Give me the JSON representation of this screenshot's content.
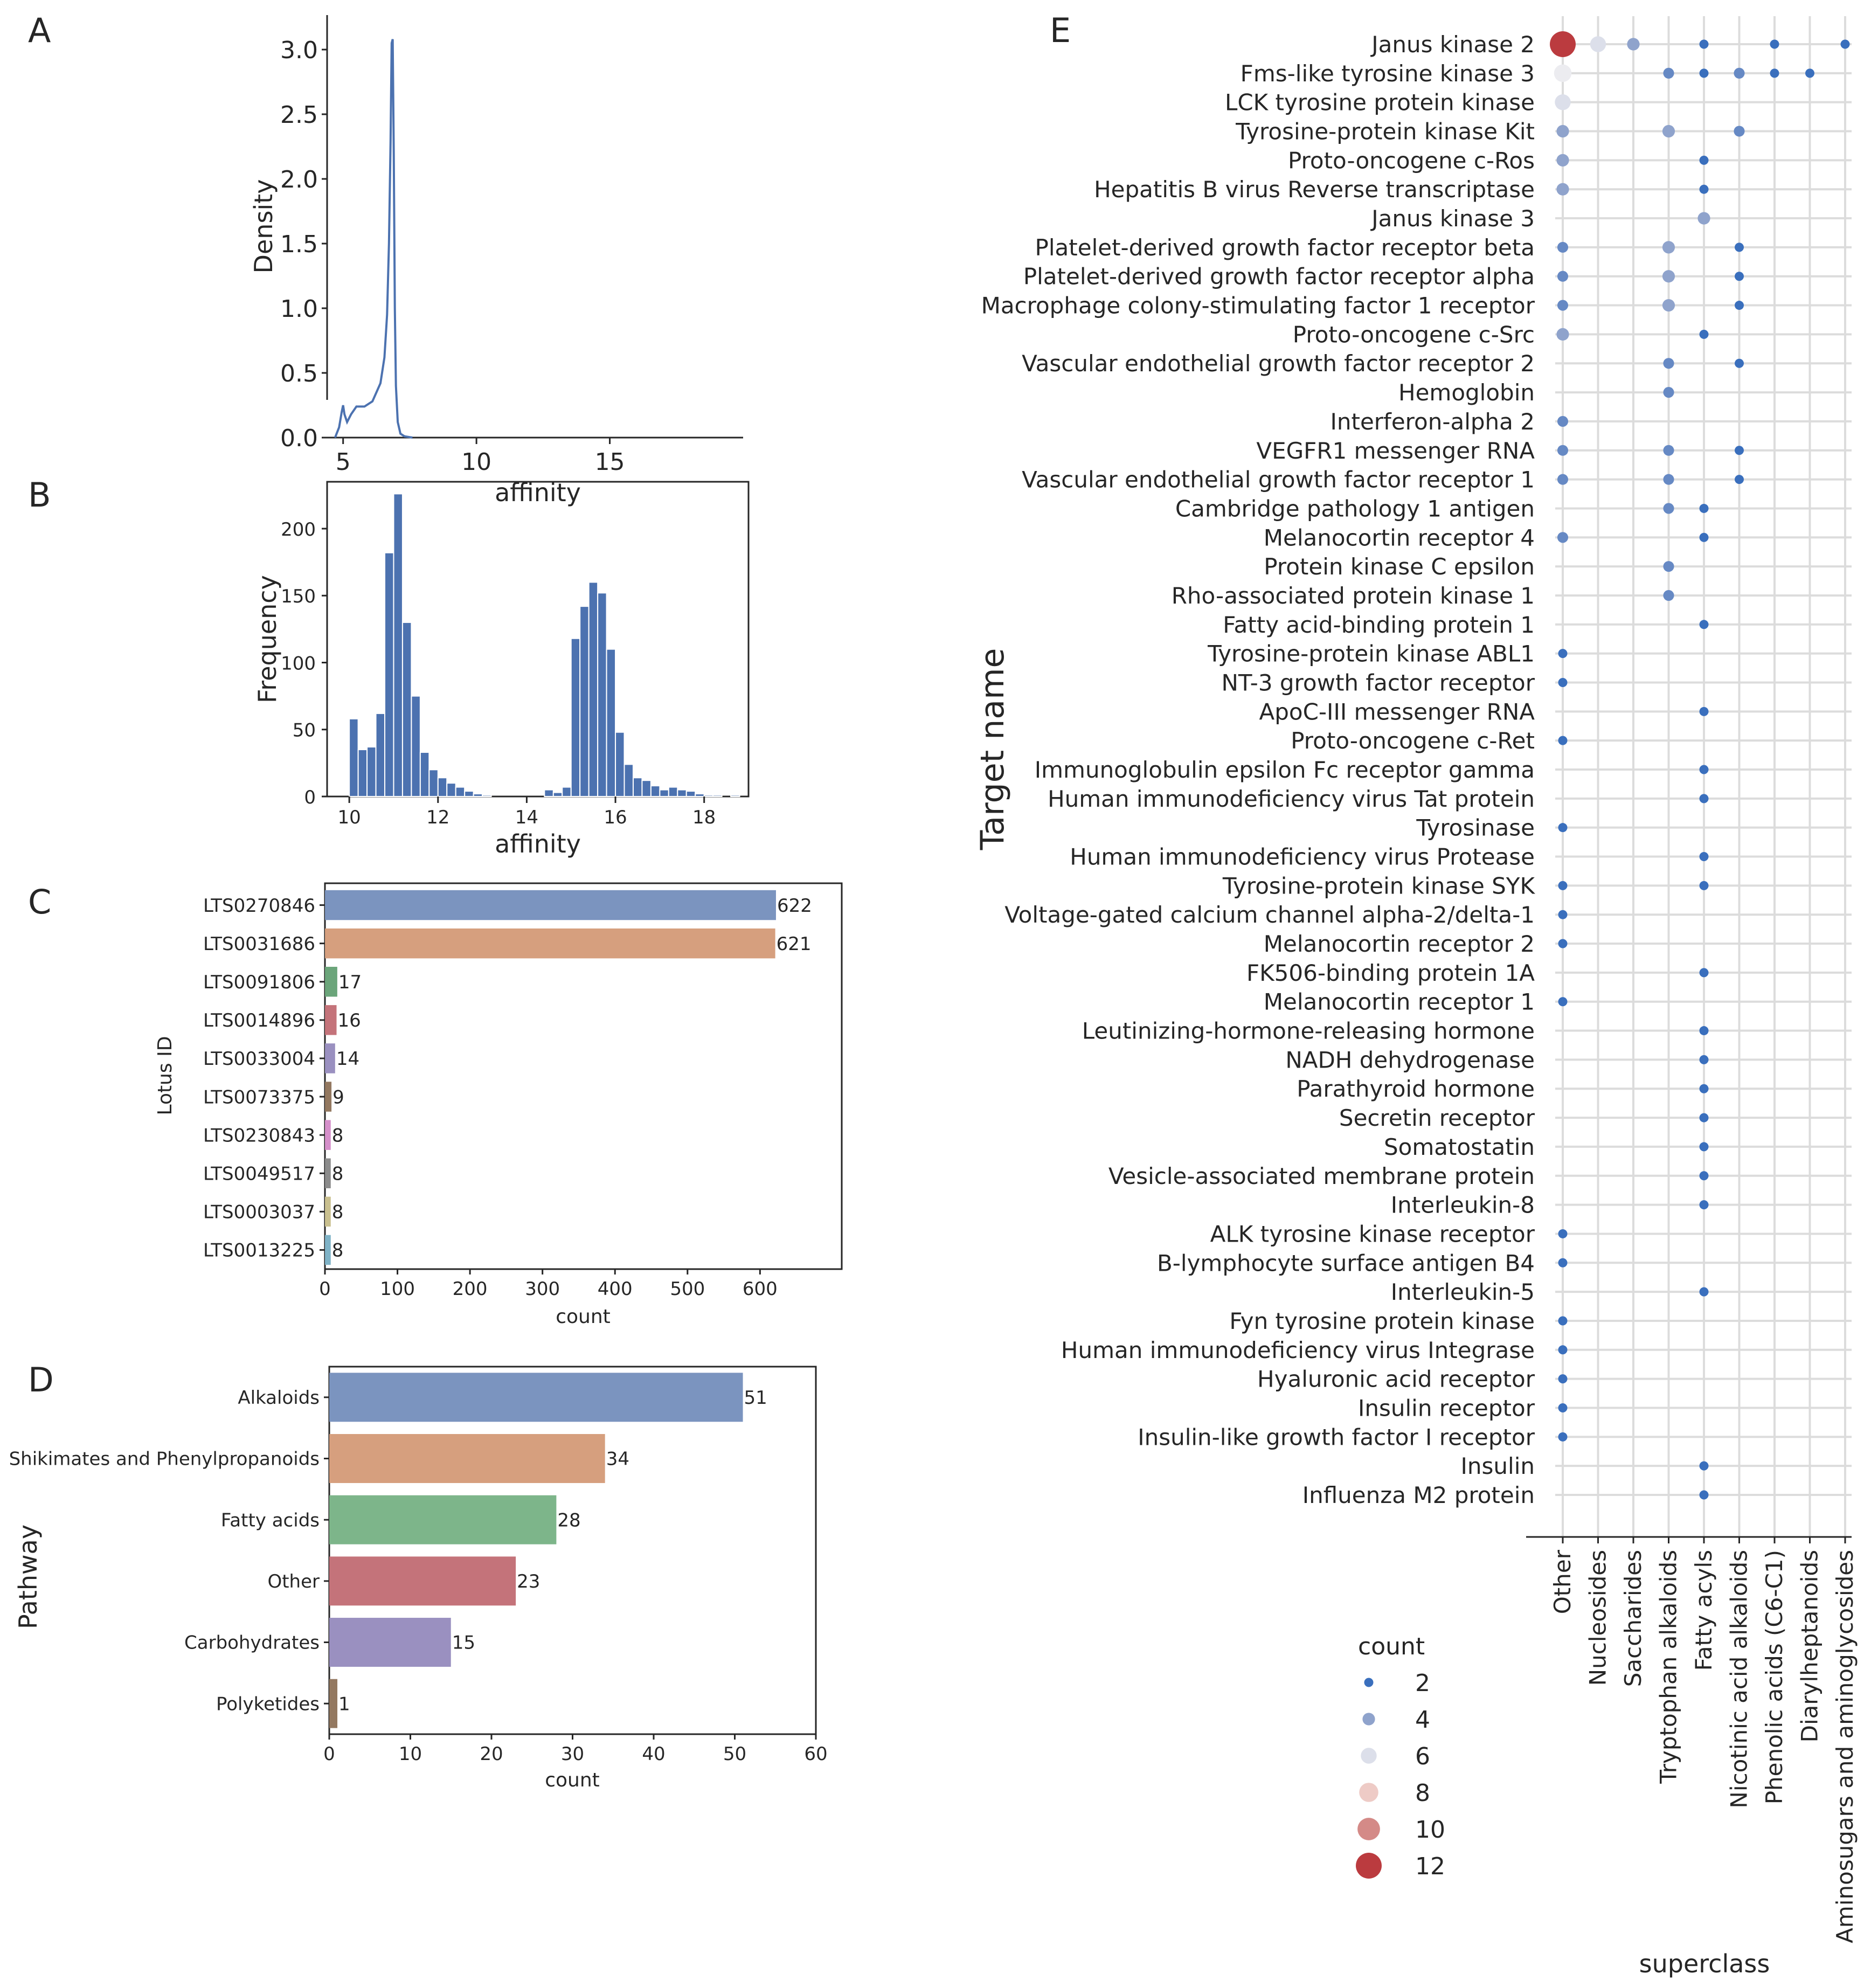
{
  "panels": {
    "A": "A",
    "B": "B",
    "C": "C",
    "D": "D",
    "E": "E"
  },
  "chart_data": [
    {
      "panel": "A",
      "type": "line",
      "title": "",
      "xlabel": "affinity",
      "ylabel": "Density",
      "xlim": [
        4.4,
        20
      ],
      "ylim": [
        0,
        3.25
      ],
      "xticks": [
        5,
        10,
        15
      ],
      "yticks": [
        0.0,
        0.5,
        1.0,
        1.5,
        2.0,
        2.5,
        3.0
      ],
      "color": "#4c72b0",
      "x": [
        4.7,
        4.85,
        4.95,
        5.0,
        5.05,
        5.15,
        5.3,
        5.5,
        5.8,
        6.1,
        6.4,
        6.55,
        6.65,
        6.72,
        6.78,
        6.82,
        6.86,
        6.9,
        6.94,
        6.98,
        7.05,
        7.15,
        7.3,
        7.6
      ],
      "y": [
        0.0,
        0.08,
        0.2,
        0.25,
        0.18,
        0.12,
        0.18,
        0.24,
        0.24,
        0.28,
        0.42,
        0.62,
        0.95,
        1.5,
        2.3,
        3.05,
        3.08,
        2.2,
        1.0,
        0.4,
        0.12,
        0.03,
        0.01,
        0.0
      ]
    },
    {
      "panel": "B",
      "type": "bar",
      "title": "",
      "xlabel": "affinity",
      "ylabel": "Frequency",
      "xlim": [
        9.5,
        19.0
      ],
      "ylim": [
        0,
        235
      ],
      "xticks": [
        10,
        12,
        14,
        16,
        18
      ],
      "yticks": [
        0,
        50,
        100,
        150,
        200
      ],
      "color": "#4c72b0",
      "bin_width": 0.2,
      "bin_starts": [
        10.0,
        10.2,
        10.4,
        10.6,
        10.8,
        11.0,
        11.2,
        11.4,
        11.6,
        11.8,
        12.0,
        12.2,
        12.4,
        12.6,
        12.8,
        13.0,
        13.2,
        13.4,
        13.6,
        13.8,
        14.0,
        14.2,
        14.4,
        14.6,
        14.8,
        15.0,
        15.2,
        15.4,
        15.6,
        15.8,
        16.0,
        16.2,
        16.4,
        16.6,
        16.8,
        17.0,
        17.2,
        17.4,
        17.6,
        17.8,
        18.0,
        18.2,
        18.4,
        18.6
      ],
      "values": [
        58,
        35,
        37,
        62,
        182,
        226,
        130,
        75,
        33,
        20,
        14,
        10,
        7,
        4,
        2,
        1,
        0,
        0,
        0,
        0,
        0,
        0,
        5,
        3,
        7,
        118,
        142,
        160,
        152,
        110,
        48,
        24,
        14,
        12,
        8,
        5,
        7,
        5,
        4,
        2,
        1,
        1,
        0,
        1
      ]
    },
    {
      "panel": "C",
      "type": "bar",
      "orientation": "horizontal",
      "title": "",
      "xlabel": "count",
      "ylabel": "Lotus ID",
      "xlim": [
        0,
        680
      ],
      "xticks": [
        0,
        100,
        200,
        300,
        400,
        500,
        600
      ],
      "categories": [
        "LTS0270846",
        "LTS0031686",
        "LTS0091806",
        "LTS0014896",
        "LTS0033004",
        "LTS0073375",
        "LTS0230843",
        "LTS0049517",
        "LTS0003037",
        "LTS0013225"
      ],
      "values": [
        622,
        621,
        17,
        16,
        14,
        9,
        8,
        8,
        8,
        8
      ],
      "colors": [
        "#7b94bf",
        "#d69f7e",
        "#6ba57a",
        "#c4737a",
        "#9a90c0",
        "#937860",
        "#d58fca",
        "#8c8c8c",
        "#c9c08f",
        "#7fb3c7"
      ]
    },
    {
      "panel": "D",
      "type": "bar",
      "orientation": "horizontal",
      "title": "",
      "xlabel": "count",
      "ylabel": "Pathway",
      "xlim": [
        0,
        60
      ],
      "xticks": [
        0,
        10,
        20,
        30,
        40,
        50,
        60
      ],
      "categories": [
        "Alkaloids",
        "Shikimates and Phenylpropanoids",
        "Fatty acids",
        "Other",
        "Carbohydrates",
        "Polyketides"
      ],
      "values": [
        51,
        34,
        28,
        23,
        15,
        1
      ],
      "colors": [
        "#7b94bf",
        "#d69f7e",
        "#7db58a",
        "#c4737a",
        "#9a90c0",
        "#937860"
      ]
    },
    {
      "panel": "E",
      "type": "scatter",
      "title": "",
      "xlabel": "superclass",
      "ylabel": "Target name",
      "x_categories": [
        "Other",
        "Nucleosides",
        "Saccharides",
        "Tryptophan alkaloids",
        "Fatty acyls",
        "Nicotinic acid alkaloids",
        "Phenolic acids (C6-C1)",
        "Diarylheptanoids",
        "Aminosugars and aminoglycosides"
      ],
      "y_categories": [
        "Janus kinase 2",
        "Fms-like tyrosine kinase 3",
        "LCK tyrosine protein kinase",
        "Tyrosine-protein kinase Kit",
        "Proto-oncogene c-Ros",
        "Hepatitis B virus Reverse transcriptase",
        "Janus kinase 3",
        "Platelet-derived growth factor receptor beta",
        "Platelet-derived growth factor receptor alpha",
        "Macrophage colony-stimulating factor 1 receptor",
        "Proto-oncogene c-Src",
        "Vascular endothelial growth factor receptor 2",
        "Hemoglobin",
        "Interferon-alpha 2",
        "VEGFR1 messenger RNA",
        "Vascular endothelial growth factor receptor 1",
        "Cambridge pathology 1 antigen",
        "Melanocortin receptor 4",
        "Protein kinase C epsilon",
        "Rho-associated protein kinase 1",
        "Fatty acid-binding protein 1",
        "Tyrosine-protein kinase ABL1",
        "NT-3 growth factor receptor",
        "ApoC-III messenger RNA",
        "Proto-oncogene c-Ret",
        "Immunoglobulin epsilon Fc receptor gamma",
        "Human immunodeficiency virus Tat protein",
        "Tyrosinase",
        "Human immunodeficiency virus Protease",
        "Tyrosine-protein kinase SYK",
        "Voltage-gated calcium channel alpha-2/delta-1",
        "Melanocortin receptor 2",
        "FK506-binding protein 1A",
        "Melanocortin receptor 1",
        "Leutinizing-hormone-releasing hormone",
        "NADH dehydrogenase",
        "Parathyroid hormone",
        "Secretin receptor",
        "Somatostatin",
        "Vesicle-associated membrane protein",
        "Interleukin-8",
        "ALK tyrosine kinase receptor",
        "B-lymphocyte surface antigen B4",
        "Interleukin-5",
        "Fyn tyrosine protein kinase",
        "Human immunodeficiency virus Integrase",
        "Hyaluronic acid receptor",
        "Insulin receptor",
        "Insulin-like growth factor I receptor",
        "Insulin",
        "Influenza M2 protein"
      ],
      "points": [
        {
          "target": "Janus kinase 2",
          "superclass": "Other",
          "count": 12
        },
        {
          "target": "Janus kinase 2",
          "superclass": "Nucleosides",
          "count": 6
        },
        {
          "target": "Janus kinase 2",
          "superclass": "Saccharides",
          "count": 4
        },
        {
          "target": "Janus kinase 2",
          "superclass": "Fatty acyls",
          "count": 2
        },
        {
          "target": "Janus kinase 2",
          "superclass": "Phenolic acids (C6-C1)",
          "count": 2
        },
        {
          "target": "Janus kinase 2",
          "superclass": "Aminosugars and aminoglycosides",
          "count": 2
        },
        {
          "target": "Fms-like tyrosine kinase 3",
          "superclass": "Other",
          "count": 7
        },
        {
          "target": "Fms-like tyrosine kinase 3",
          "superclass": "Tryptophan alkaloids",
          "count": 3
        },
        {
          "target": "Fms-like tyrosine kinase 3",
          "superclass": "Fatty acyls",
          "count": 2
        },
        {
          "target": "Fms-like tyrosine kinase 3",
          "superclass": "Nicotinic acid alkaloids",
          "count": 3
        },
        {
          "target": "Fms-like tyrosine kinase 3",
          "superclass": "Phenolic acids (C6-C1)",
          "count": 2
        },
        {
          "target": "Fms-like tyrosine kinase 3",
          "superclass": "Diarylheptanoids",
          "count": 2
        },
        {
          "target": "LCK tyrosine protein kinase",
          "superclass": "Other",
          "count": 6
        },
        {
          "target": "Tyrosine-protein kinase Kit",
          "superclass": "Other",
          "count": 4
        },
        {
          "target": "Tyrosine-protein kinase Kit",
          "superclass": "Tryptophan alkaloids",
          "count": 4
        },
        {
          "target": "Tyrosine-protein kinase Kit",
          "superclass": "Nicotinic acid alkaloids",
          "count": 3
        },
        {
          "target": "Proto-oncogene c-Ros",
          "superclass": "Other",
          "count": 4
        },
        {
          "target": "Proto-oncogene c-Ros",
          "superclass": "Fatty acyls",
          "count": 2
        },
        {
          "target": "Hepatitis B virus Reverse transcriptase",
          "superclass": "Other",
          "count": 4
        },
        {
          "target": "Hepatitis B virus Reverse transcriptase",
          "superclass": "Fatty acyls",
          "count": 2
        },
        {
          "target": "Janus kinase 3",
          "superclass": "Fatty acyls",
          "count": 4
        },
        {
          "target": "Platelet-derived growth factor receptor beta",
          "superclass": "Other",
          "count": 3
        },
        {
          "target": "Platelet-derived growth factor receptor beta",
          "superclass": "Tryptophan alkaloids",
          "count": 4
        },
        {
          "target": "Platelet-derived growth factor receptor beta",
          "superclass": "Nicotinic acid alkaloids",
          "count": 2
        },
        {
          "target": "Platelet-derived growth factor receptor alpha",
          "superclass": "Other",
          "count": 3
        },
        {
          "target": "Platelet-derived growth factor receptor alpha",
          "superclass": "Tryptophan alkaloids",
          "count": 4
        },
        {
          "target": "Platelet-derived growth factor receptor alpha",
          "superclass": "Nicotinic acid alkaloids",
          "count": 2
        },
        {
          "target": "Macrophage colony-stimulating factor 1 receptor",
          "superclass": "Other",
          "count": 3
        },
        {
          "target": "Macrophage colony-stimulating factor 1 receptor",
          "superclass": "Tryptophan alkaloids",
          "count": 4
        },
        {
          "target": "Macrophage colony-stimulating factor 1 receptor",
          "superclass": "Nicotinic acid alkaloids",
          "count": 2
        },
        {
          "target": "Proto-oncogene c-Src",
          "superclass": "Other",
          "count": 4
        },
        {
          "target": "Proto-oncogene c-Src",
          "superclass": "Fatty acyls",
          "count": 2
        },
        {
          "target": "Vascular endothelial growth factor receptor 2",
          "superclass": "Tryptophan alkaloids",
          "count": 3
        },
        {
          "target": "Vascular endothelial growth factor receptor 2",
          "superclass": "Nicotinic acid alkaloids",
          "count": 2
        },
        {
          "target": "Hemoglobin",
          "superclass": "Tryptophan alkaloids",
          "count": 3
        },
        {
          "target": "Interferon-alpha 2",
          "superclass": "Other",
          "count": 3
        },
        {
          "target": "VEGFR1 messenger RNA",
          "superclass": "Other",
          "count": 3
        },
        {
          "target": "VEGFR1 messenger RNA",
          "superclass": "Tryptophan alkaloids",
          "count": 3
        },
        {
          "target": "VEGFR1 messenger RNA",
          "superclass": "Nicotinic acid alkaloids",
          "count": 2
        },
        {
          "target": "Vascular endothelial growth factor receptor 1",
          "superclass": "Other",
          "count": 3
        },
        {
          "target": "Vascular endothelial growth factor receptor 1",
          "superclass": "Tryptophan alkaloids",
          "count": 3
        },
        {
          "target": "Vascular endothelial growth factor receptor 1",
          "superclass": "Nicotinic acid alkaloids",
          "count": 2
        },
        {
          "target": "Cambridge pathology 1 antigen",
          "superclass": "Tryptophan alkaloids",
          "count": 3
        },
        {
          "target": "Cambridge pathology 1 antigen",
          "superclass": "Fatty acyls",
          "count": 2
        },
        {
          "target": "Melanocortin receptor 4",
          "superclass": "Other",
          "count": 3
        },
        {
          "target": "Melanocortin receptor 4",
          "superclass": "Fatty acyls",
          "count": 2
        },
        {
          "target": "Protein kinase C epsilon",
          "superclass": "Tryptophan alkaloids",
          "count": 3
        },
        {
          "target": "Rho-associated protein kinase 1",
          "superclass": "Tryptophan alkaloids",
          "count": 3
        },
        {
          "target": "Fatty acid-binding protein 1",
          "superclass": "Fatty acyls",
          "count": 2
        },
        {
          "target": "Tyrosine-protein kinase ABL1",
          "superclass": "Other",
          "count": 2
        },
        {
          "target": "NT-3 growth factor receptor",
          "superclass": "Other",
          "count": 2
        },
        {
          "target": "ApoC-III messenger RNA",
          "superclass": "Fatty acyls",
          "count": 2
        },
        {
          "target": "Proto-oncogene c-Ret",
          "superclass": "Other",
          "count": 2
        },
        {
          "target": "Immunoglobulin epsilon Fc receptor gamma",
          "superclass": "Fatty acyls",
          "count": 2
        },
        {
          "target": "Human immunodeficiency virus Tat protein",
          "superclass": "Fatty acyls",
          "count": 2
        },
        {
          "target": "Tyrosinase",
          "superclass": "Other",
          "count": 2
        },
        {
          "target": "Human immunodeficiency virus Protease",
          "superclass": "Fatty acyls",
          "count": 2
        },
        {
          "target": "Tyrosine-protein kinase SYK",
          "superclass": "Other",
          "count": 2
        },
        {
          "target": "Tyrosine-protein kinase SYK",
          "superclass": "Fatty acyls",
          "count": 2
        },
        {
          "target": "Voltage-gated calcium channel alpha-2/delta-1",
          "superclass": "Other",
          "count": 2
        },
        {
          "target": "Melanocortin receptor 2",
          "superclass": "Other",
          "count": 2
        },
        {
          "target": "FK506-binding protein 1A",
          "superclass": "Fatty acyls",
          "count": 2
        },
        {
          "target": "Melanocortin receptor 1",
          "superclass": "Other",
          "count": 2
        },
        {
          "target": "Leutinizing-hormone-releasing hormone",
          "superclass": "Fatty acyls",
          "count": 2
        },
        {
          "target": "NADH dehydrogenase",
          "superclass": "Fatty acyls",
          "count": 2
        },
        {
          "target": "Parathyroid hormone",
          "superclass": "Fatty acyls",
          "count": 2
        },
        {
          "target": "Secretin receptor",
          "superclass": "Fatty acyls",
          "count": 2
        },
        {
          "target": "Somatostatin",
          "superclass": "Fatty acyls",
          "count": 2
        },
        {
          "target": "Vesicle-associated membrane protein",
          "superclass": "Fatty acyls",
          "count": 2
        },
        {
          "target": "Interleukin-8",
          "superclass": "Fatty acyls",
          "count": 2
        },
        {
          "target": "ALK tyrosine kinase receptor",
          "superclass": "Other",
          "count": 2
        },
        {
          "target": "B-lymphocyte surface antigen B4",
          "superclass": "Other",
          "count": 2
        },
        {
          "target": "Interleukin-5",
          "superclass": "Fatty acyls",
          "count": 2
        },
        {
          "target": "Fyn tyrosine protein kinase",
          "superclass": "Other",
          "count": 2
        },
        {
          "target": "Human immunodeficiency virus Integrase",
          "superclass": "Other",
          "count": 2
        },
        {
          "target": "Hyaluronic acid receptor",
          "superclass": "Other",
          "count": 2
        },
        {
          "target": "Insulin receptor",
          "superclass": "Other",
          "count": 2
        },
        {
          "target": "Insulin-like growth factor I receptor",
          "superclass": "Other",
          "count": 2
        },
        {
          "target": "Insulin",
          "superclass": "Fatty acyls",
          "count": 2
        },
        {
          "target": "Influenza M2 protein",
          "superclass": "Fatty acyls",
          "count": 2
        }
      ],
      "legend": {
        "title": "count",
        "placement": "bottom-left",
        "entries": [
          {
            "label": "2",
            "count": 2,
            "color": "#3a6fbd"
          },
          {
            "label": "4",
            "count": 4,
            "color": "#8fa3cc"
          },
          {
            "label": "6",
            "count": 6,
            "color": "#dcdfea"
          },
          {
            "label": "8",
            "count": 8,
            "color": "#eecbc6"
          },
          {
            "label": "10",
            "count": 10,
            "color": "#d48a87"
          },
          {
            "label": "12",
            "count": 12,
            "color": "#bb3b3f"
          }
        ]
      },
      "count_colors": {
        "2": "#3a6fbd",
        "3": "#6689c4",
        "4": "#8fa3cc",
        "5": "#b8c1dc",
        "6": "#dcdfea",
        "7": "#ececf0",
        "8": "#eecbc6",
        "10": "#d48a87",
        "12": "#bb3b3f"
      }
    }
  ]
}
